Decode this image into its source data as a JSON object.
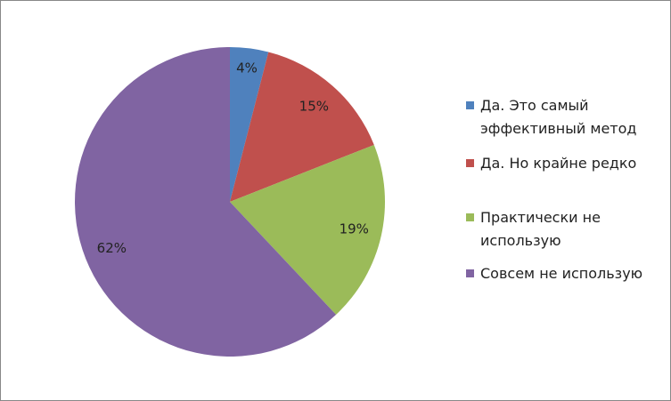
{
  "chart_data": {
    "type": "pie",
    "categories": [
      "Да. Это самый эффективный метод",
      "Да. Но крайне редко",
      "Практически не использую",
      "Совсем не использую"
    ],
    "values": [
      4,
      15,
      19,
      62
    ],
    "value_labels": [
      "4%",
      "15%",
      "19%",
      "62%"
    ],
    "colors": [
      "#4f81bd",
      "#c0504d",
      "#9bbb59",
      "#8064a2"
    ]
  }
}
